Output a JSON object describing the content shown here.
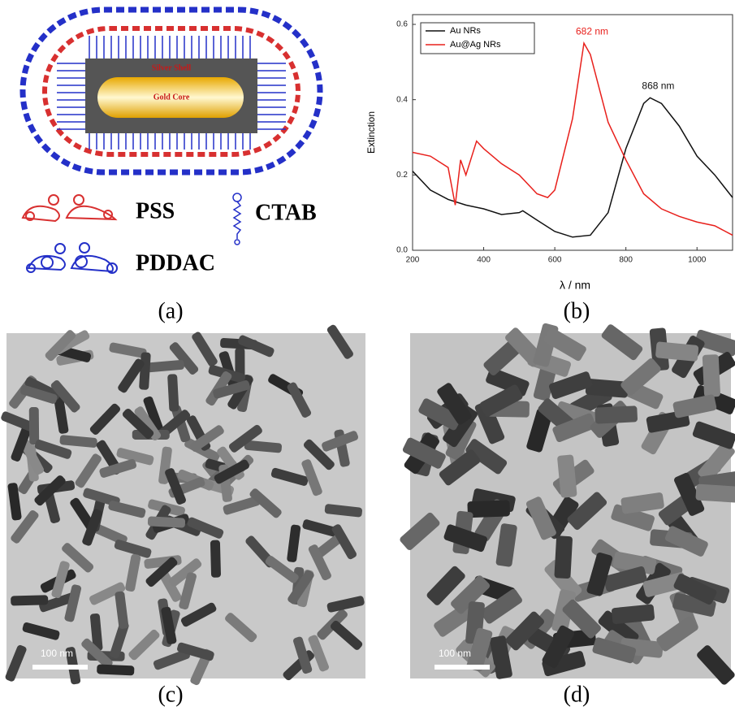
{
  "panels": {
    "a": {
      "label": "(a)",
      "silver_shell": "Silver Shell",
      "gold_core": "Gold Core",
      "pss": "PSS",
      "ctab": "CTAB",
      "pddac": "PDDAC"
    },
    "b": {
      "label": "(b)"
    },
    "c": {
      "label": "(c)",
      "scale_bar": "100 nm"
    },
    "d": {
      "label": "(d)",
      "scale_bar": "100 nm"
    }
  },
  "chart_data": {
    "type": "line",
    "xlabel": "λ / nm",
    "ylabel": "Extinction",
    "xlim": [
      200,
      1100
    ],
    "xticks": [
      200,
      400,
      600,
      800,
      1000
    ],
    "ylim": [
      0,
      0.6
    ],
    "yticks": [
      {
        "value": 0,
        "label": "0.0"
      },
      0.2,
      0.4,
      0.6
    ],
    "legend": "upper left",
    "annotations": [
      {
        "text": "682 nm",
        "x": 682,
        "y": 0.55,
        "color": "#e8201c"
      },
      {
        "text": "868 nm",
        "x": 868,
        "y": 0.405,
        "color": "#111111"
      }
    ],
    "series": [
      {
        "name": "Au NRs",
        "color": "#111111",
        "x": [
          200,
          250,
          300,
          350,
          400,
          450,
          500,
          510,
          550,
          600,
          650,
          700,
          750,
          800,
          850,
          868,
          900,
          950,
          1000,
          1050,
          1100
        ],
        "values": [
          0.21,
          0.16,
          0.135,
          0.12,
          0.11,
          0.095,
          0.1,
          0.105,
          0.08,
          0.05,
          0.035,
          0.04,
          0.1,
          0.27,
          0.39,
          0.405,
          0.39,
          0.33,
          0.25,
          0.2,
          0.14
        ]
      },
      {
        "name": "Au@Ag NRs",
        "color": "#e8201c",
        "x": [
          200,
          250,
          300,
          320,
          335,
          350,
          380,
          400,
          450,
          500,
          550,
          580,
          600,
          650,
          682,
          700,
          750,
          800,
          850,
          900,
          950,
          1000,
          1050,
          1100
        ],
        "values": [
          0.26,
          0.25,
          0.22,
          0.12,
          0.24,
          0.2,
          0.29,
          0.27,
          0.23,
          0.2,
          0.15,
          0.14,
          0.16,
          0.35,
          0.55,
          0.52,
          0.34,
          0.24,
          0.15,
          0.11,
          0.09,
          0.075,
          0.065,
          0.04
        ]
      }
    ]
  }
}
